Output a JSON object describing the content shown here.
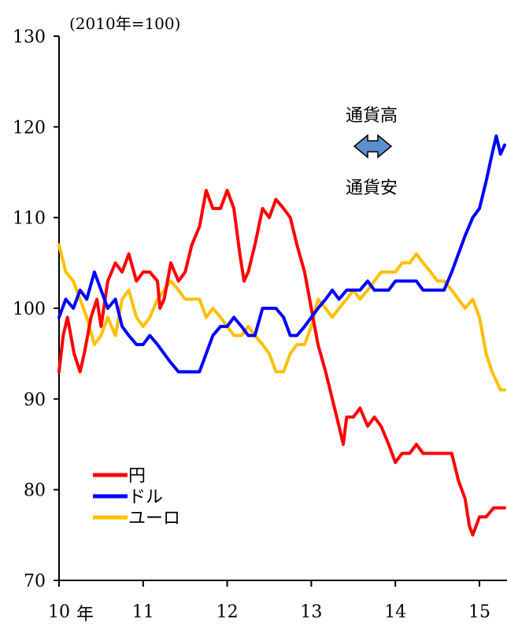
{
  "chart_data": {
    "type": "line",
    "unit_label": "(2010年=100)",
    "ylim": [
      70,
      130
    ],
    "yticks": [
      70,
      80,
      90,
      100,
      110,
      120,
      130
    ],
    "xlim": [
      2010,
      2015.3
    ],
    "xtick_values": [
      2010,
      2011,
      2012,
      2013,
      2014,
      2015
    ],
    "xtick_labels": [
      "10",
      "11",
      "12",
      "13",
      "14",
      "15"
    ],
    "x_unit_suffix": "年",
    "grid": false,
    "legend_position": "bottom-left",
    "annotation": {
      "top": "通貨高",
      "bottom": "通貨安"
    },
    "series": [
      {
        "name": "円",
        "color": "#ff0000",
        "points": [
          [
            2010.0,
            93
          ],
          [
            2010.05,
            97
          ],
          [
            2010.1,
            99
          ],
          [
            2010.18,
            95
          ],
          [
            2010.25,
            93
          ],
          [
            2010.3,
            95
          ],
          [
            2010.38,
            99
          ],
          [
            2010.45,
            101
          ],
          [
            2010.5,
            98
          ],
          [
            2010.58,
            103
          ],
          [
            2010.67,
            105
          ],
          [
            2010.75,
            104
          ],
          [
            2010.83,
            106
          ],
          [
            2010.92,
            103
          ],
          [
            2011.0,
            104
          ],
          [
            2011.08,
            104
          ],
          [
            2011.17,
            103
          ],
          [
            2011.2,
            100
          ],
          [
            2011.25,
            101
          ],
          [
            2011.33,
            105
          ],
          [
            2011.42,
            103
          ],
          [
            2011.5,
            104
          ],
          [
            2011.58,
            107
          ],
          [
            2011.67,
            109
          ],
          [
            2011.75,
            113
          ],
          [
            2011.83,
            111
          ],
          [
            2011.92,
            111
          ],
          [
            2012.0,
            113
          ],
          [
            2012.08,
            111
          ],
          [
            2012.15,
            106
          ],
          [
            2012.2,
            103
          ],
          [
            2012.25,
            104
          ],
          [
            2012.33,
            107
          ],
          [
            2012.42,
            111
          ],
          [
            2012.5,
            110
          ],
          [
            2012.58,
            112
          ],
          [
            2012.67,
            111
          ],
          [
            2012.75,
            110
          ],
          [
            2012.83,
            107
          ],
          [
            2012.92,
            104
          ],
          [
            2013.0,
            100
          ],
          [
            2013.08,
            96
          ],
          [
            2013.17,
            93
          ],
          [
            2013.25,
            90
          ],
          [
            2013.33,
            87
          ],
          [
            2013.38,
            85
          ],
          [
            2013.42,
            88
          ],
          [
            2013.5,
            88
          ],
          [
            2013.58,
            89
          ],
          [
            2013.67,
            87
          ],
          [
            2013.75,
            88
          ],
          [
            2013.83,
            87
          ],
          [
            2013.92,
            85
          ],
          [
            2014.0,
            83
          ],
          [
            2014.08,
            84
          ],
          [
            2014.17,
            84
          ],
          [
            2014.25,
            85
          ],
          [
            2014.33,
            84
          ],
          [
            2014.42,
            84
          ],
          [
            2014.5,
            84
          ],
          [
            2014.58,
            84
          ],
          [
            2014.67,
            84
          ],
          [
            2014.75,
            81
          ],
          [
            2014.83,
            79
          ],
          [
            2014.88,
            76
          ],
          [
            2014.92,
            75
          ],
          [
            2015.0,
            77
          ],
          [
            2015.08,
            77
          ],
          [
            2015.17,
            78
          ],
          [
            2015.25,
            78
          ],
          [
            2015.3,
            78
          ]
        ]
      },
      {
        "name": "ドル",
        "color": "#0000ff",
        "points": [
          [
            2010.0,
            99
          ],
          [
            2010.08,
            101
          ],
          [
            2010.17,
            100
          ],
          [
            2010.25,
            102
          ],
          [
            2010.33,
            101
          ],
          [
            2010.42,
            104
          ],
          [
            2010.5,
            102
          ],
          [
            2010.58,
            100
          ],
          [
            2010.67,
            101
          ],
          [
            2010.75,
            98
          ],
          [
            2010.83,
            97
          ],
          [
            2010.92,
            96
          ],
          [
            2011.0,
            96
          ],
          [
            2011.08,
            97
          ],
          [
            2011.17,
            96
          ],
          [
            2011.25,
            95
          ],
          [
            2011.33,
            94
          ],
          [
            2011.42,
            93
          ],
          [
            2011.5,
            93
          ],
          [
            2011.58,
            93
          ],
          [
            2011.67,
            93
          ],
          [
            2011.75,
            95
          ],
          [
            2011.83,
            97
          ],
          [
            2011.92,
            98
          ],
          [
            2012.0,
            98
          ],
          [
            2012.08,
            99
          ],
          [
            2012.17,
            98
          ],
          [
            2012.25,
            97
          ],
          [
            2012.33,
            97
          ],
          [
            2012.42,
            100
          ],
          [
            2012.5,
            100
          ],
          [
            2012.58,
            100
          ],
          [
            2012.67,
            99
          ],
          [
            2012.75,
            97
          ],
          [
            2012.83,
            97
          ],
          [
            2012.92,
            98
          ],
          [
            2013.0,
            99
          ],
          [
            2013.08,
            100
          ],
          [
            2013.17,
            101
          ],
          [
            2013.25,
            102
          ],
          [
            2013.33,
            101
          ],
          [
            2013.42,
            102
          ],
          [
            2013.5,
            102
          ],
          [
            2013.58,
            102
          ],
          [
            2013.67,
            103
          ],
          [
            2013.75,
            102
          ],
          [
            2013.83,
            102
          ],
          [
            2013.92,
            102
          ],
          [
            2014.0,
            103
          ],
          [
            2014.08,
            103
          ],
          [
            2014.17,
            103
          ],
          [
            2014.25,
            103
          ],
          [
            2014.33,
            102
          ],
          [
            2014.42,
            102
          ],
          [
            2014.5,
            102
          ],
          [
            2014.58,
            102
          ],
          [
            2014.67,
            104
          ],
          [
            2014.75,
            106
          ],
          [
            2014.83,
            108
          ],
          [
            2014.92,
            110
          ],
          [
            2015.0,
            111
          ],
          [
            2015.08,
            114
          ],
          [
            2015.15,
            117
          ],
          [
            2015.2,
            119
          ],
          [
            2015.25,
            117
          ],
          [
            2015.3,
            118
          ]
        ]
      },
      {
        "name": "ユーロ",
        "color": "#ffc000",
        "points": [
          [
            2010.0,
            107
          ],
          [
            2010.08,
            104
          ],
          [
            2010.17,
            103
          ],
          [
            2010.25,
            101
          ],
          [
            2010.33,
            99
          ],
          [
            2010.42,
            96
          ],
          [
            2010.5,
            97
          ],
          [
            2010.58,
            99
          ],
          [
            2010.67,
            97
          ],
          [
            2010.75,
            101
          ],
          [
            2010.83,
            102
          ],
          [
            2010.92,
            99
          ],
          [
            2011.0,
            98
          ],
          [
            2011.08,
            99
          ],
          [
            2011.17,
            101
          ],
          [
            2011.25,
            102
          ],
          [
            2011.33,
            103
          ],
          [
            2011.42,
            102
          ],
          [
            2011.5,
            101
          ],
          [
            2011.58,
            101
          ],
          [
            2011.67,
            101
          ],
          [
            2011.75,
            99
          ],
          [
            2011.83,
            100
          ],
          [
            2011.92,
            99
          ],
          [
            2012.0,
            98
          ],
          [
            2012.08,
            97
          ],
          [
            2012.17,
            97
          ],
          [
            2012.25,
            98
          ],
          [
            2012.33,
            97
          ],
          [
            2012.42,
            96
          ],
          [
            2012.5,
            95
          ],
          [
            2012.58,
            93
          ],
          [
            2012.67,
            93
          ],
          [
            2012.75,
            95
          ],
          [
            2012.83,
            96
          ],
          [
            2012.92,
            96
          ],
          [
            2013.0,
            98
          ],
          [
            2013.08,
            101
          ],
          [
            2013.17,
            100
          ],
          [
            2013.25,
            99
          ],
          [
            2013.33,
            100
          ],
          [
            2013.42,
            101
          ],
          [
            2013.5,
            102
          ],
          [
            2013.58,
            101
          ],
          [
            2013.67,
            102
          ],
          [
            2013.75,
            103
          ],
          [
            2013.83,
            104
          ],
          [
            2013.92,
            104
          ],
          [
            2014.0,
            104
          ],
          [
            2014.08,
            105
          ],
          [
            2014.17,
            105
          ],
          [
            2014.25,
            106
          ],
          [
            2014.33,
            105
          ],
          [
            2014.42,
            104
          ],
          [
            2014.5,
            103
          ],
          [
            2014.58,
            103
          ],
          [
            2014.67,
            102
          ],
          [
            2014.75,
            101
          ],
          [
            2014.83,
            100
          ],
          [
            2014.92,
            101
          ],
          [
            2015.0,
            99
          ],
          [
            2015.08,
            95
          ],
          [
            2015.15,
            93
          ],
          [
            2015.2,
            92
          ],
          [
            2015.25,
            91
          ],
          [
            2015.3,
            91
          ]
        ]
      }
    ]
  }
}
